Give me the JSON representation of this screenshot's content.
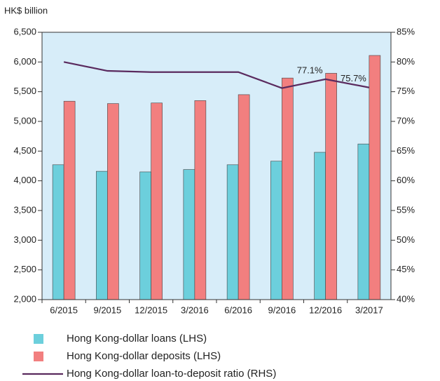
{
  "chart_data": {
    "type": "bar",
    "y_axis_label": "HK$ billion",
    "categories": [
      "6/2015",
      "9/2015",
      "12/2015",
      "3/2016",
      "6/2016",
      "9/2016",
      "12/2016",
      "3/2017"
    ],
    "series": [
      {
        "name": "Hong Kong-dollar loans (LHS)",
        "color": "#6ccfdc",
        "type": "bar",
        "values": [
          4270,
          4160,
          4150,
          4190,
          4270,
          4330,
          4480,
          4620
        ]
      },
      {
        "name": "Hong Kong-dollar deposits (LHS)",
        "color": "#f27f7f",
        "type": "bar",
        "values": [
          5340,
          5300,
          5310,
          5350,
          5450,
          5730,
          5810,
          6110
        ]
      },
      {
        "name": "Hong Kong-dollar loan-to-deposit ratio (RHS)",
        "color": "#5a2a5e",
        "type": "line",
        "axis": "y2",
        "values": [
          80.0,
          78.5,
          78.3,
          78.3,
          78.3,
          75.6,
          77.1,
          75.7
        ],
        "value_labels": [
          null,
          null,
          null,
          null,
          null,
          null,
          "77.1%",
          "75.7%"
        ]
      }
    ],
    "ylim": [
      2000,
      6500
    ],
    "yticks": [
      {
        "value": 2000,
        "label": "2,000"
      },
      {
        "value": 2500,
        "label": "2,500"
      },
      {
        "value": 3000,
        "label": "3,000"
      },
      {
        "value": 3500,
        "label": "3,500"
      },
      {
        "value": 4000,
        "label": "4,000"
      },
      {
        "value": 4500,
        "label": "4,500"
      },
      {
        "value": 5000,
        "label": "5,000"
      },
      {
        "value": 5500,
        "label": "5,500"
      },
      {
        "value": 6000,
        "label": "6,000"
      },
      {
        "value": 6500,
        "label": "6,500"
      }
    ],
    "y2lim": [
      40,
      85
    ],
    "y2ticks": [
      {
        "value": 40,
        "label": "40%"
      },
      {
        "value": 45,
        "label": "45%"
      },
      {
        "value": 50,
        "label": "50%"
      },
      {
        "value": 55,
        "label": "55%"
      },
      {
        "value": 60,
        "label": "60%"
      },
      {
        "value": 65,
        "label": "65%"
      },
      {
        "value": 70,
        "label": "70%"
      },
      {
        "value": 75,
        "label": "75%"
      },
      {
        "value": 80,
        "label": "80%"
      },
      {
        "value": 85,
        "label": "85%"
      }
    ],
    "plot_background": "#d7edf9"
  }
}
